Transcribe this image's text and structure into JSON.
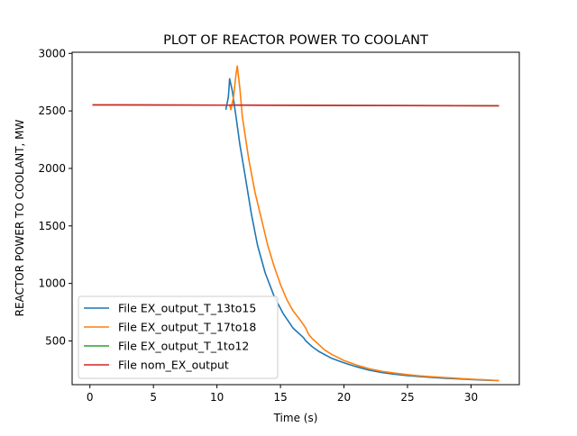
{
  "chart_data": {
    "type": "line",
    "title": "PLOT OF REACTOR POWER TO COOLANT",
    "xlabel": "Time (s)",
    "ylabel": "REACTOR POWER TO COOLANT, MW",
    "xlim": [
      -1.4,
      33.8
    ],
    "ylim": [
      120,
      3010
    ],
    "xticks": [
      0,
      5,
      10,
      15,
      20,
      25,
      30
    ],
    "yticks": [
      500,
      1000,
      1500,
      2000,
      2500,
      3000
    ],
    "grid": false,
    "legend_position": "lower-left",
    "series": [
      {
        "name": "File EX_output_T_13to15",
        "color": "#1f77b4",
        "x": [
          10.7,
          10.9,
          11.0,
          11.2,
          11.5,
          11.8,
          12.2,
          12.7,
          13.2,
          13.8,
          14.5,
          15.2,
          16.0,
          16.8,
          17.0,
          17.5,
          18.0,
          19.0,
          20.0,
          21.0,
          22.0,
          23.0,
          24.0,
          25.0,
          26.0,
          27.0,
          28.0,
          29.0,
          30.0,
          31.0,
          32.2
        ],
        "y": [
          2510,
          2620,
          2780,
          2680,
          2450,
          2210,
          1950,
          1610,
          1330,
          1090,
          890,
          740,
          610,
          530,
          500,
          450,
          410,
          350,
          310,
          275,
          245,
          225,
          210,
          198,
          190,
          182,
          175,
          170,
          165,
          160,
          155
        ]
      },
      {
        "name": "File EX_output_T_17to18",
        "color": "#ff7f0e",
        "x": [
          11.0,
          11.1,
          11.3,
          11.5,
          11.6,
          11.8,
          12.0,
          12.5,
          13.0,
          13.5,
          14.0,
          14.5,
          15.0,
          15.5,
          16.0,
          16.5,
          17.0,
          17.2,
          17.5,
          18.0,
          18.5,
          19.0,
          20.0,
          21.0,
          22.0,
          23.0,
          24.0,
          25.0,
          26.0,
          27.0,
          28.0,
          29.0,
          30.0,
          31.0,
          32.2
        ],
        "y": [
          2550,
          2510,
          2620,
          2820,
          2890,
          2700,
          2450,
          2080,
          1790,
          1560,
          1330,
          1150,
          990,
          860,
          760,
          690,
          610,
          560,
          520,
          470,
          420,
          385,
          330,
          290,
          258,
          235,
          220,
          207,
          196,
          188,
          181,
          175,
          168,
          162,
          155
        ]
      },
      {
        "name": "File EX_output_T_1to12",
        "color": "#2ca02c",
        "x": [
          0.2,
          32.2
        ],
        "y": [
          2553,
          2545
        ]
      },
      {
        "name": "File nom_EX_output",
        "color": "#d62728",
        "x": [
          0.2,
          32.2
        ],
        "y": [
          2553,
          2545
        ]
      }
    ]
  }
}
